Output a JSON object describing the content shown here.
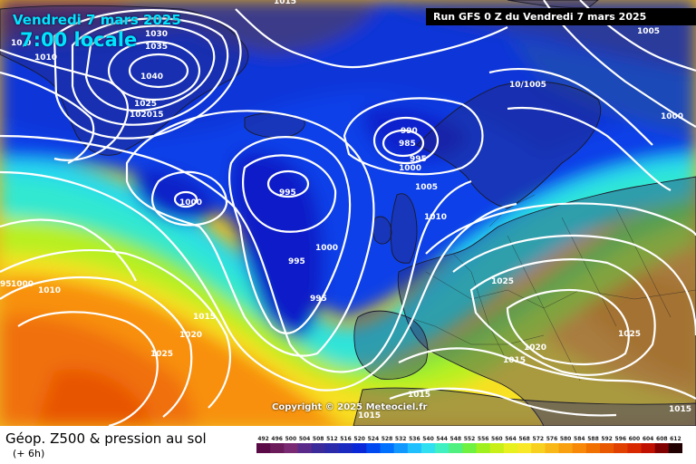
{
  "header": {
    "date": "Vendredi 7 mars 2025",
    "time": "7:00 locale",
    "run": "Run GFS 0 Z du Vendredi 7 mars 2025"
  },
  "footer": {
    "title": "Géop. Z500 & pression au sol",
    "subtitle": "(+ 6h)",
    "copyright": "Copyright © 2025 Meteociel.fr"
  },
  "scale": {
    "labels": [
      "492",
      "496",
      "500",
      "504",
      "508",
      "512",
      "516",
      "520",
      "524",
      "528",
      "532",
      "536",
      "540",
      "544",
      "548",
      "552",
      "556",
      "560",
      "564",
      "568",
      "572",
      "576",
      "580",
      "584",
      "588",
      "592",
      "596",
      "600",
      "604",
      "608",
      "612"
    ],
    "colors": [
      "#5a0a46",
      "#6b1a5a",
      "#7a2a72",
      "#5a2a8a",
      "#3a2a9a",
      "#2a2aaa",
      "#1a2ac0",
      "#0a28d8",
      "#0048f0",
      "#0070ff",
      "#1098ff",
      "#20c0ff",
      "#30e0f0",
      "#40f0c0",
      "#50f080",
      "#70f040",
      "#a0f020",
      "#c8f018",
      "#e8f020",
      "#f8e828",
      "#f8d020",
      "#f8b818",
      "#f8a010",
      "#f88808",
      "#f07000",
      "#e85800",
      "#e04000",
      "#d82800",
      "#c01000",
      "#800000",
      "#200000"
    ]
  },
  "isobar_labels": [
    {
      "id": "h-1030",
      "text": "1030"
    },
    {
      "id": "h-1035",
      "text": "1035"
    },
    {
      "id": "h-1040",
      "text": "1040"
    },
    {
      "id": "h-1025a",
      "text": "1025"
    },
    {
      "id": "h-1020a",
      "text": "1020"
    },
    {
      "id": "h-1015a",
      "text": "15"
    },
    {
      "id": "g-1010a",
      "text": "1010"
    },
    {
      "id": "g-1010b",
      "text": "10,0"
    },
    {
      "id": "g-1015top",
      "text": "1015"
    },
    {
      "id": "l-990",
      "text": "990"
    },
    {
      "id": "l-985",
      "text": "985"
    },
    {
      "id": "l-995a",
      "text": "995"
    },
    {
      "id": "l-1000a",
      "text": "1000"
    },
    {
      "id": "l-995b",
      "text": "995"
    },
    {
      "id": "l-1000b",
      "text": "1000"
    },
    {
      "id": "l-1005a",
      "text": "1005"
    },
    {
      "id": "l-1010c",
      "text": "1010"
    },
    {
      "id": "l-1000c",
      "text": "1000"
    },
    {
      "id": "l-995c",
      "text": "995"
    },
    {
      "id": "l-995d",
      "text": "995"
    },
    {
      "id": "w-1000d",
      "text": "1000"
    },
    {
      "id": "w-995e",
      "text": "95"
    },
    {
      "id": "w-1010d",
      "text": "1010"
    },
    {
      "id": "w-1015b",
      "text": "1015"
    },
    {
      "id": "w-1020b",
      "text": "1020"
    },
    {
      "id": "w-1025b",
      "text": "1025"
    },
    {
      "id": "e-1025c",
      "text": "1025"
    },
    {
      "id": "e-1020c",
      "text": "1020"
    },
    {
      "id": "e-1015c",
      "text": "1015"
    },
    {
      "id": "e-1025d",
      "text": "1025"
    },
    {
      "id": "e-1015d",
      "text": "1015"
    },
    {
      "id": "e-1015e",
      "text": "1015"
    },
    {
      "id": "e-1015f",
      "text": "1015"
    },
    {
      "id": "ne-1005",
      "text": "1005"
    },
    {
      "id": "ne-1000",
      "text": "1000"
    },
    {
      "id": "ne-1010",
      "text": "10/1005"
    }
  ]
}
